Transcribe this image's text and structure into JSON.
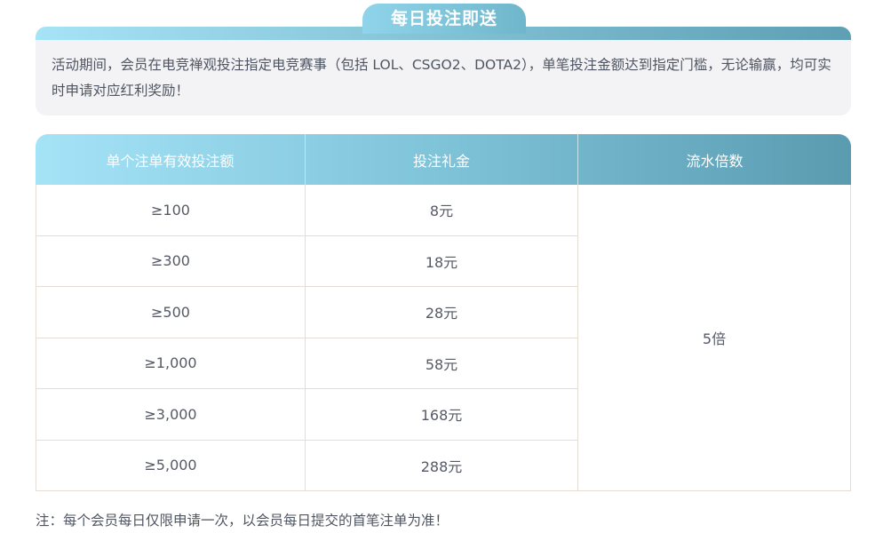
{
  "title": "每日投注即送",
  "description": "活动期间，会员在电竞禅观投注指定电竞赛事（包括 LOL、CSGO2、DOTA2），单笔投注金额达到指定门槛，无论输赢，均可实时申请对应红利奖励！",
  "table": {
    "headers": [
      "单个注单有效投注额",
      "投注礼金",
      "流水倍数"
    ],
    "rows": [
      {
        "amount": "≥100",
        "bonus": "8元"
      },
      {
        "amount": "≥300",
        "bonus": "18元"
      },
      {
        "amount": "≥500",
        "bonus": "28元"
      },
      {
        "amount": "≥1,000",
        "bonus": "58元"
      },
      {
        "amount": "≥3,000",
        "bonus": "168元"
      },
      {
        "amount": "≥5,000",
        "bonus": "288元"
      }
    ],
    "multiplier": "5倍"
  },
  "note": "注：每个会员每日仅限申请一次，以会员每日提交的首笔注单为准！",
  "colors": {
    "header_start": "#a5e3f7",
    "header_end": "#5a9bb0",
    "border": "#e5ddd3"
  }
}
